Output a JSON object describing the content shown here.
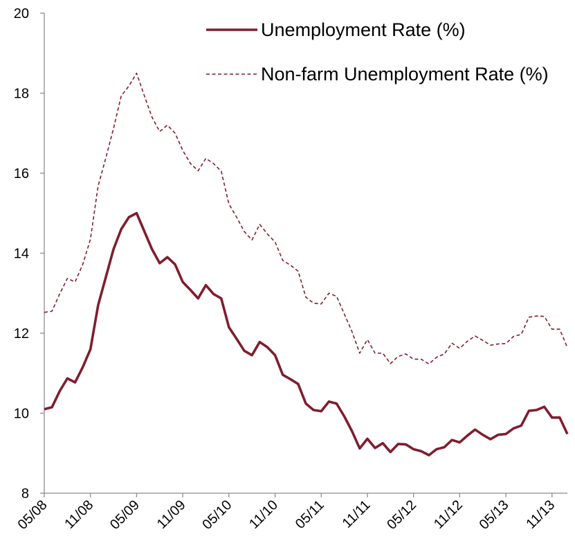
{
  "chart_data": {
    "type": "line",
    "title": "",
    "xlabel": "",
    "ylabel": "",
    "ylim": [
      8,
      20
    ],
    "yticks": [
      8,
      10,
      12,
      14,
      16,
      18,
      20
    ],
    "x_tick_labels": [
      "05/08",
      "11/08",
      "05/09",
      "11/09",
      "05/10",
      "11/10",
      "05/11",
      "11/11",
      "05/12",
      "11/12",
      "05/13",
      "11/13"
    ],
    "x_tick_months": [
      0,
      6,
      12,
      18,
      24,
      30,
      36,
      42,
      48,
      54,
      60,
      66
    ],
    "grid": false,
    "legend_position": "top-right",
    "series": [
      {
        "name": "Unemployment Rate (%)",
        "color": "#7f1d2e",
        "style": "solid",
        "values": [
          10.1,
          10.15,
          10.55,
          10.87,
          10.77,
          11.15,
          11.6,
          12.7,
          13.4,
          14.1,
          14.6,
          14.9,
          15.0,
          14.55,
          14.1,
          13.75,
          13.9,
          13.72,
          13.28,
          13.08,
          12.87,
          13.2,
          12.98,
          12.87,
          12.15,
          11.86,
          11.56,
          11.45,
          11.78,
          11.65,
          11.45,
          10.96,
          10.85,
          10.73,
          10.24,
          10.08,
          10.05,
          10.29,
          10.24,
          9.92,
          9.55,
          9.12,
          9.36,
          9.13,
          9.25,
          9.03,
          9.23,
          9.22,
          9.1,
          9.05,
          8.95,
          9.1,
          9.15,
          9.33,
          9.27,
          9.44,
          9.59,
          9.46,
          9.35,
          9.46,
          9.48,
          9.62,
          9.69,
          10.06,
          10.08,
          10.16,
          9.89,
          9.89,
          9.48
        ]
      },
      {
        "name": "Non-farm Unemployment Rate (%)",
        "color": "#7f1d2e",
        "style": "dashed",
        "values": [
          12.52,
          12.55,
          12.98,
          13.37,
          13.28,
          13.72,
          14.35,
          15.68,
          16.38,
          17.12,
          17.93,
          18.18,
          18.5,
          17.94,
          17.4,
          17.04,
          17.2,
          17.0,
          16.57,
          16.24,
          16.06,
          16.37,
          16.24,
          16.05,
          15.23,
          14.9,
          14.54,
          14.33,
          14.72,
          14.48,
          14.28,
          13.82,
          13.7,
          13.55,
          12.9,
          12.75,
          12.73,
          13.0,
          12.92,
          12.48,
          12.04,
          11.5,
          11.84,
          11.5,
          11.5,
          11.24,
          11.42,
          11.48,
          11.35,
          11.35,
          11.23,
          11.4,
          11.48,
          11.75,
          11.62,
          11.8,
          11.93,
          11.82,
          11.7,
          11.73,
          11.74,
          11.92,
          11.97,
          12.4,
          12.43,
          12.42,
          12.1,
          12.1,
          11.64
        ]
      }
    ]
  }
}
